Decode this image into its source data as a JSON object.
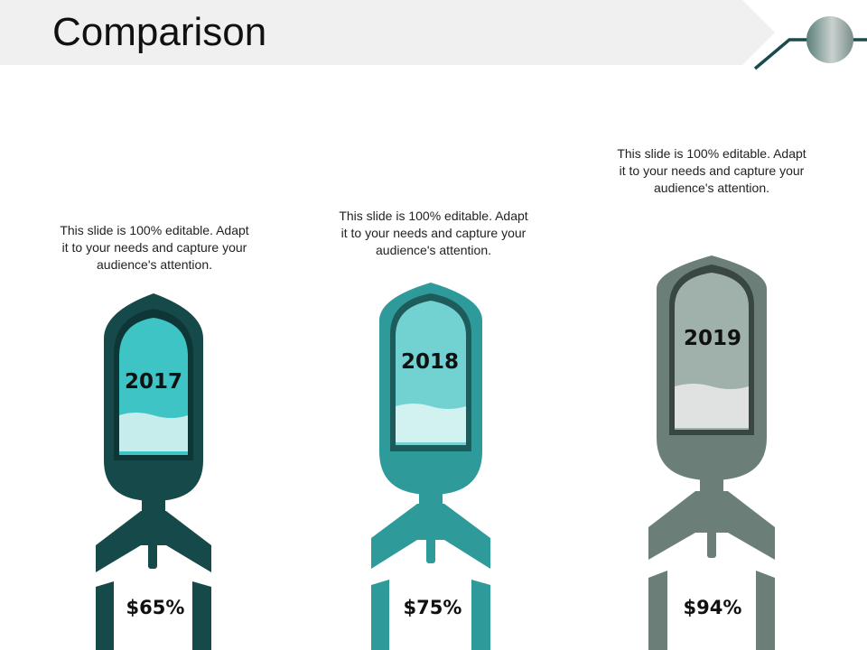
{
  "slide": {
    "title": "Comparison"
  },
  "colors": {
    "rocket_1": "#164a4a",
    "rocket_2": "#2f9a9a",
    "rocket_3": "#6b7f78"
  },
  "items": [
    {
      "year": "2017",
      "value": "$65%",
      "description": "This slide is 100% editable. Adapt it to your needs and capture your audience's attention."
    },
    {
      "year": "2018",
      "value": "$75%",
      "description": "This slide is 100% editable. Adapt it to your needs and capture your audience's attention."
    },
    {
      "year": "2019",
      "value": "$94%",
      "description": "This slide is 100% editable. Adapt it to your needs and capture your audience's attention."
    }
  ]
}
